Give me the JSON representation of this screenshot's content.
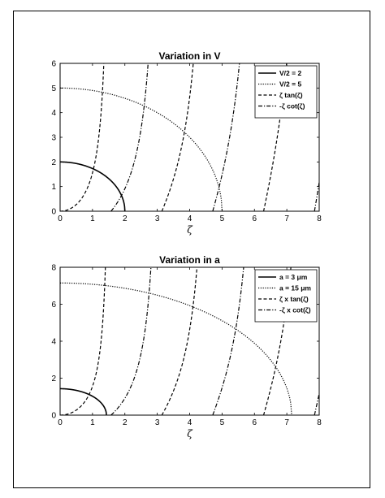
{
  "chart_data": [
    {
      "type": "line",
      "title": "Variation in V",
      "xlabel": "ζ",
      "ylabel": "",
      "xlim": [
        0,
        8
      ],
      "ylim": [
        0,
        6
      ],
      "x_ticks": [
        "0",
        "1",
        "2",
        "3",
        "4",
        "5",
        "6",
        "7",
        "8"
      ],
      "y_ticks": [
        "0",
        "1",
        "2",
        "3",
        "4",
        "5",
        "6"
      ],
      "grid": false,
      "legend_position": "top-right",
      "series": [
        {
          "name": "V/2 = 2",
          "kind": "circle",
          "radius": 2,
          "style": "solid",
          "width": 1.6
        },
        {
          "name": "V/2 = 5",
          "kind": "circle",
          "radius": 5,
          "style": "dotted",
          "width": 1.2
        },
        {
          "name": "ζ tan(ζ)",
          "kind": "ztan",
          "style": "dashed",
          "width": 1.2
        },
        {
          "name": "-ζ cot(ζ)",
          "kind": "zcot",
          "style": "dashdot",
          "width": 1.2
        }
      ]
    },
    {
      "type": "line",
      "title": "Variation in a",
      "xlabel": "ζ",
      "ylabel": "",
      "xlim": [
        0,
        8
      ],
      "ylim": [
        0,
        8
      ],
      "x_ticks": [
        "0",
        "1",
        "2",
        "3",
        "4",
        "5",
        "6",
        "7",
        "8"
      ],
      "y_ticks": [
        "0",
        "2",
        "4",
        "6",
        "8"
      ],
      "grid": false,
      "legend_position": "top-right",
      "series": [
        {
          "name": "a = 3 μm",
          "kind": "circle",
          "radius": 1.43,
          "style": "solid",
          "width": 1.6
        },
        {
          "name": "a = 15 μm",
          "kind": "circle",
          "radius": 7.15,
          "style": "dotted",
          "width": 1.2
        },
        {
          "name": "ζ x tan(ζ)",
          "kind": "ztan",
          "style": "dashed",
          "width": 1.2
        },
        {
          "name": "-ζ x cot(ζ)",
          "kind": "zcot",
          "style": "dashdot",
          "width": 1.2
        }
      ]
    }
  ]
}
